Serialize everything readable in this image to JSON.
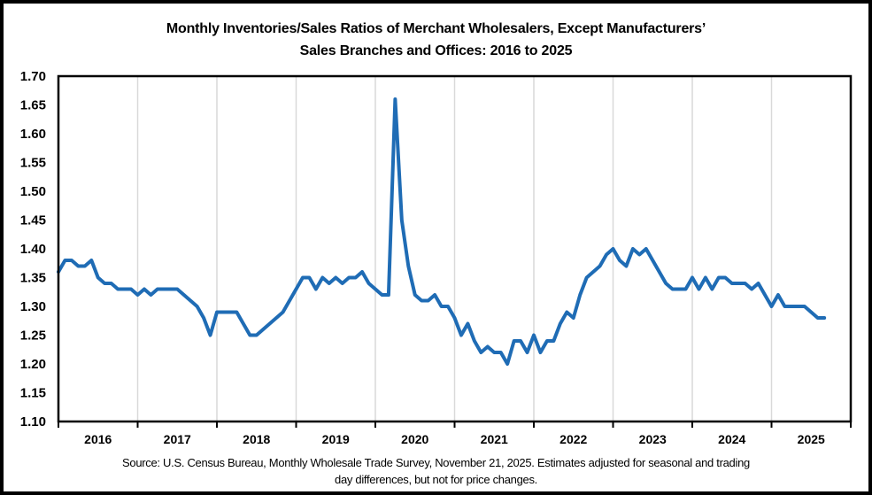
{
  "figure": {
    "title_line1": "Monthly Inventories/Sales Ratios of Merchant Wholesalers, Except Manufacturers’",
    "title_line2": "Sales Branches and Offices: 2016 to 2025",
    "source_line1": "Source: U.S. Census Bureau, Monthly Wholesale Trade Survey, November 21, 2025. Estimates adjusted for seasonal and trading",
    "source_line2": "day differences, but not for price changes."
  },
  "chart_data": {
    "type": "line",
    "title": "Monthly Inventories/Sales Ratios of Merchant Wholesalers, Except Manufacturers’ Sales Branches and Offices: 2016 to 2025",
    "xlabel": "",
    "ylabel": "",
    "ylim": [
      1.1,
      1.7
    ],
    "y_tick_labels": [
      "1.70",
      "1.65",
      "1.60",
      "1.55",
      "1.50",
      "1.45",
      "1.40",
      "1.35",
      "1.30",
      "1.25",
      "1.20",
      "1.15",
      "1.10"
    ],
    "x_tick_labels": [
      "2016",
      "2017",
      "2018",
      "2019",
      "2020",
      "2021",
      "2022",
      "2023",
      "2024",
      "2025"
    ],
    "grid": "vertical-lines-at-year-boundaries",
    "legend": "none",
    "line_color": "#1F6CB5",
    "grid_color": "#D9D9D9",
    "axis_color": "#000000",
    "annotations": {
      "peak_value": 1.66,
      "peak_month": "April 2020",
      "low_value": 1.2,
      "low_month": "September 2021",
      "last_point": "September 2025"
    },
    "series": [
      {
        "name": "Inventories/Sales Ratio",
        "frequency": "monthly",
        "start": "2016-01",
        "end": "2025-09",
        "values_by_year": {
          "2016": [
            1.36,
            1.38,
            1.38,
            1.37,
            1.37,
            1.38,
            1.35,
            1.34,
            1.34,
            1.33,
            1.33,
            1.33
          ],
          "2017": [
            1.32,
            1.33,
            1.32,
            1.33,
            1.33,
            1.33,
            1.33,
            1.32,
            1.31,
            1.3,
            1.28,
            1.25
          ],
          "2018": [
            1.29,
            1.29,
            1.29,
            1.29,
            1.27,
            1.25,
            1.25,
            1.26,
            1.27,
            1.28,
            1.29,
            1.31
          ],
          "2019": [
            1.33,
            1.35,
            1.35,
            1.33,
            1.35,
            1.34,
            1.35,
            1.34,
            1.35,
            1.35,
            1.36,
            1.34
          ],
          "2020": [
            1.33,
            1.32,
            1.32,
            1.66,
            1.45,
            1.37,
            1.32,
            1.31,
            1.31,
            1.32,
            1.3,
            1.3
          ],
          "2021": [
            1.28,
            1.25,
            1.27,
            1.24,
            1.22,
            1.23,
            1.22,
            1.22,
            1.2,
            1.24,
            1.24,
            1.22
          ],
          "2022": [
            1.25,
            1.22,
            1.24,
            1.24,
            1.27,
            1.29,
            1.28,
            1.32,
            1.35,
            1.36,
            1.37,
            1.39
          ],
          "2023": [
            1.4,
            1.38,
            1.37,
            1.4,
            1.39,
            1.4,
            1.38,
            1.36,
            1.34,
            1.33,
            1.33,
            1.33
          ],
          "2024": [
            1.35,
            1.33,
            1.35,
            1.33,
            1.35,
            1.35,
            1.34,
            1.34,
            1.34,
            1.33,
            1.34,
            1.32
          ],
          "2025": [
            1.3,
            1.32,
            1.3,
            1.3,
            1.3,
            1.3,
            1.29,
            1.28,
            1.28
          ]
        }
      }
    ]
  }
}
